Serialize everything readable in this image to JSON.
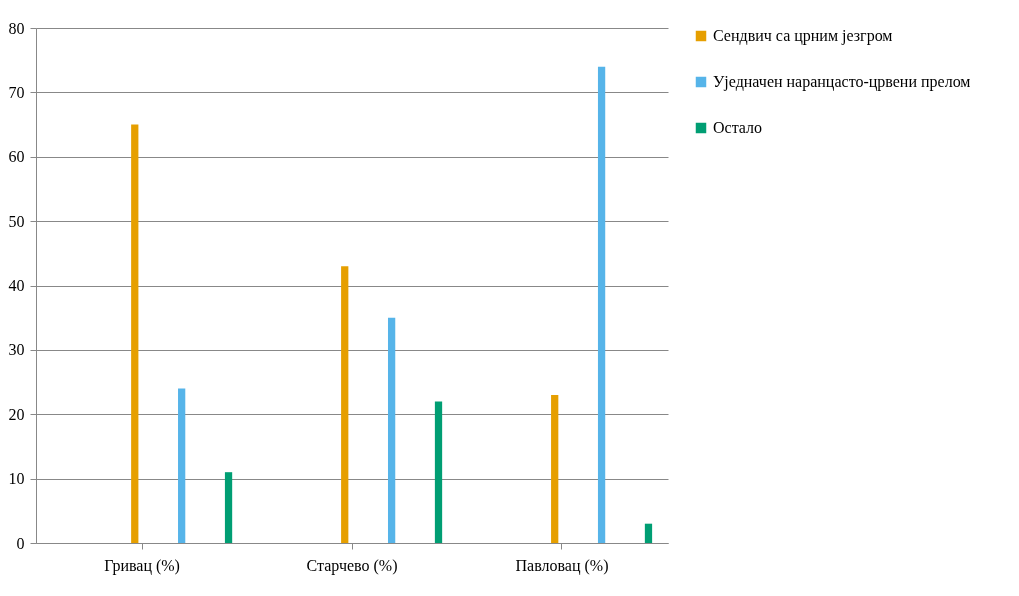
{
  "chart_data": {
    "type": "bar",
    "categories": [
      "Гривац (%)",
      "Старчево (%)",
      "Павловац (%)"
    ],
    "series": [
      {
        "name": "Сендвич са црним језгром",
        "color": "#e69f00",
        "values": [
          65,
          43,
          23
        ]
      },
      {
        "name": "Уједначен наранцасто-црвени прелом",
        "color": "#56b4e9",
        "values": [
          24,
          35,
          74
        ]
      },
      {
        "name": "Остало",
        "color": "#009e73",
        "values": [
          11,
          22,
          3
        ]
      }
    ],
    "ylim": [
      0,
      80
    ],
    "yticks": [
      0,
      10,
      20,
      30,
      40,
      50,
      60,
      70,
      80
    ],
    "grid": "y",
    "legend": "right"
  }
}
